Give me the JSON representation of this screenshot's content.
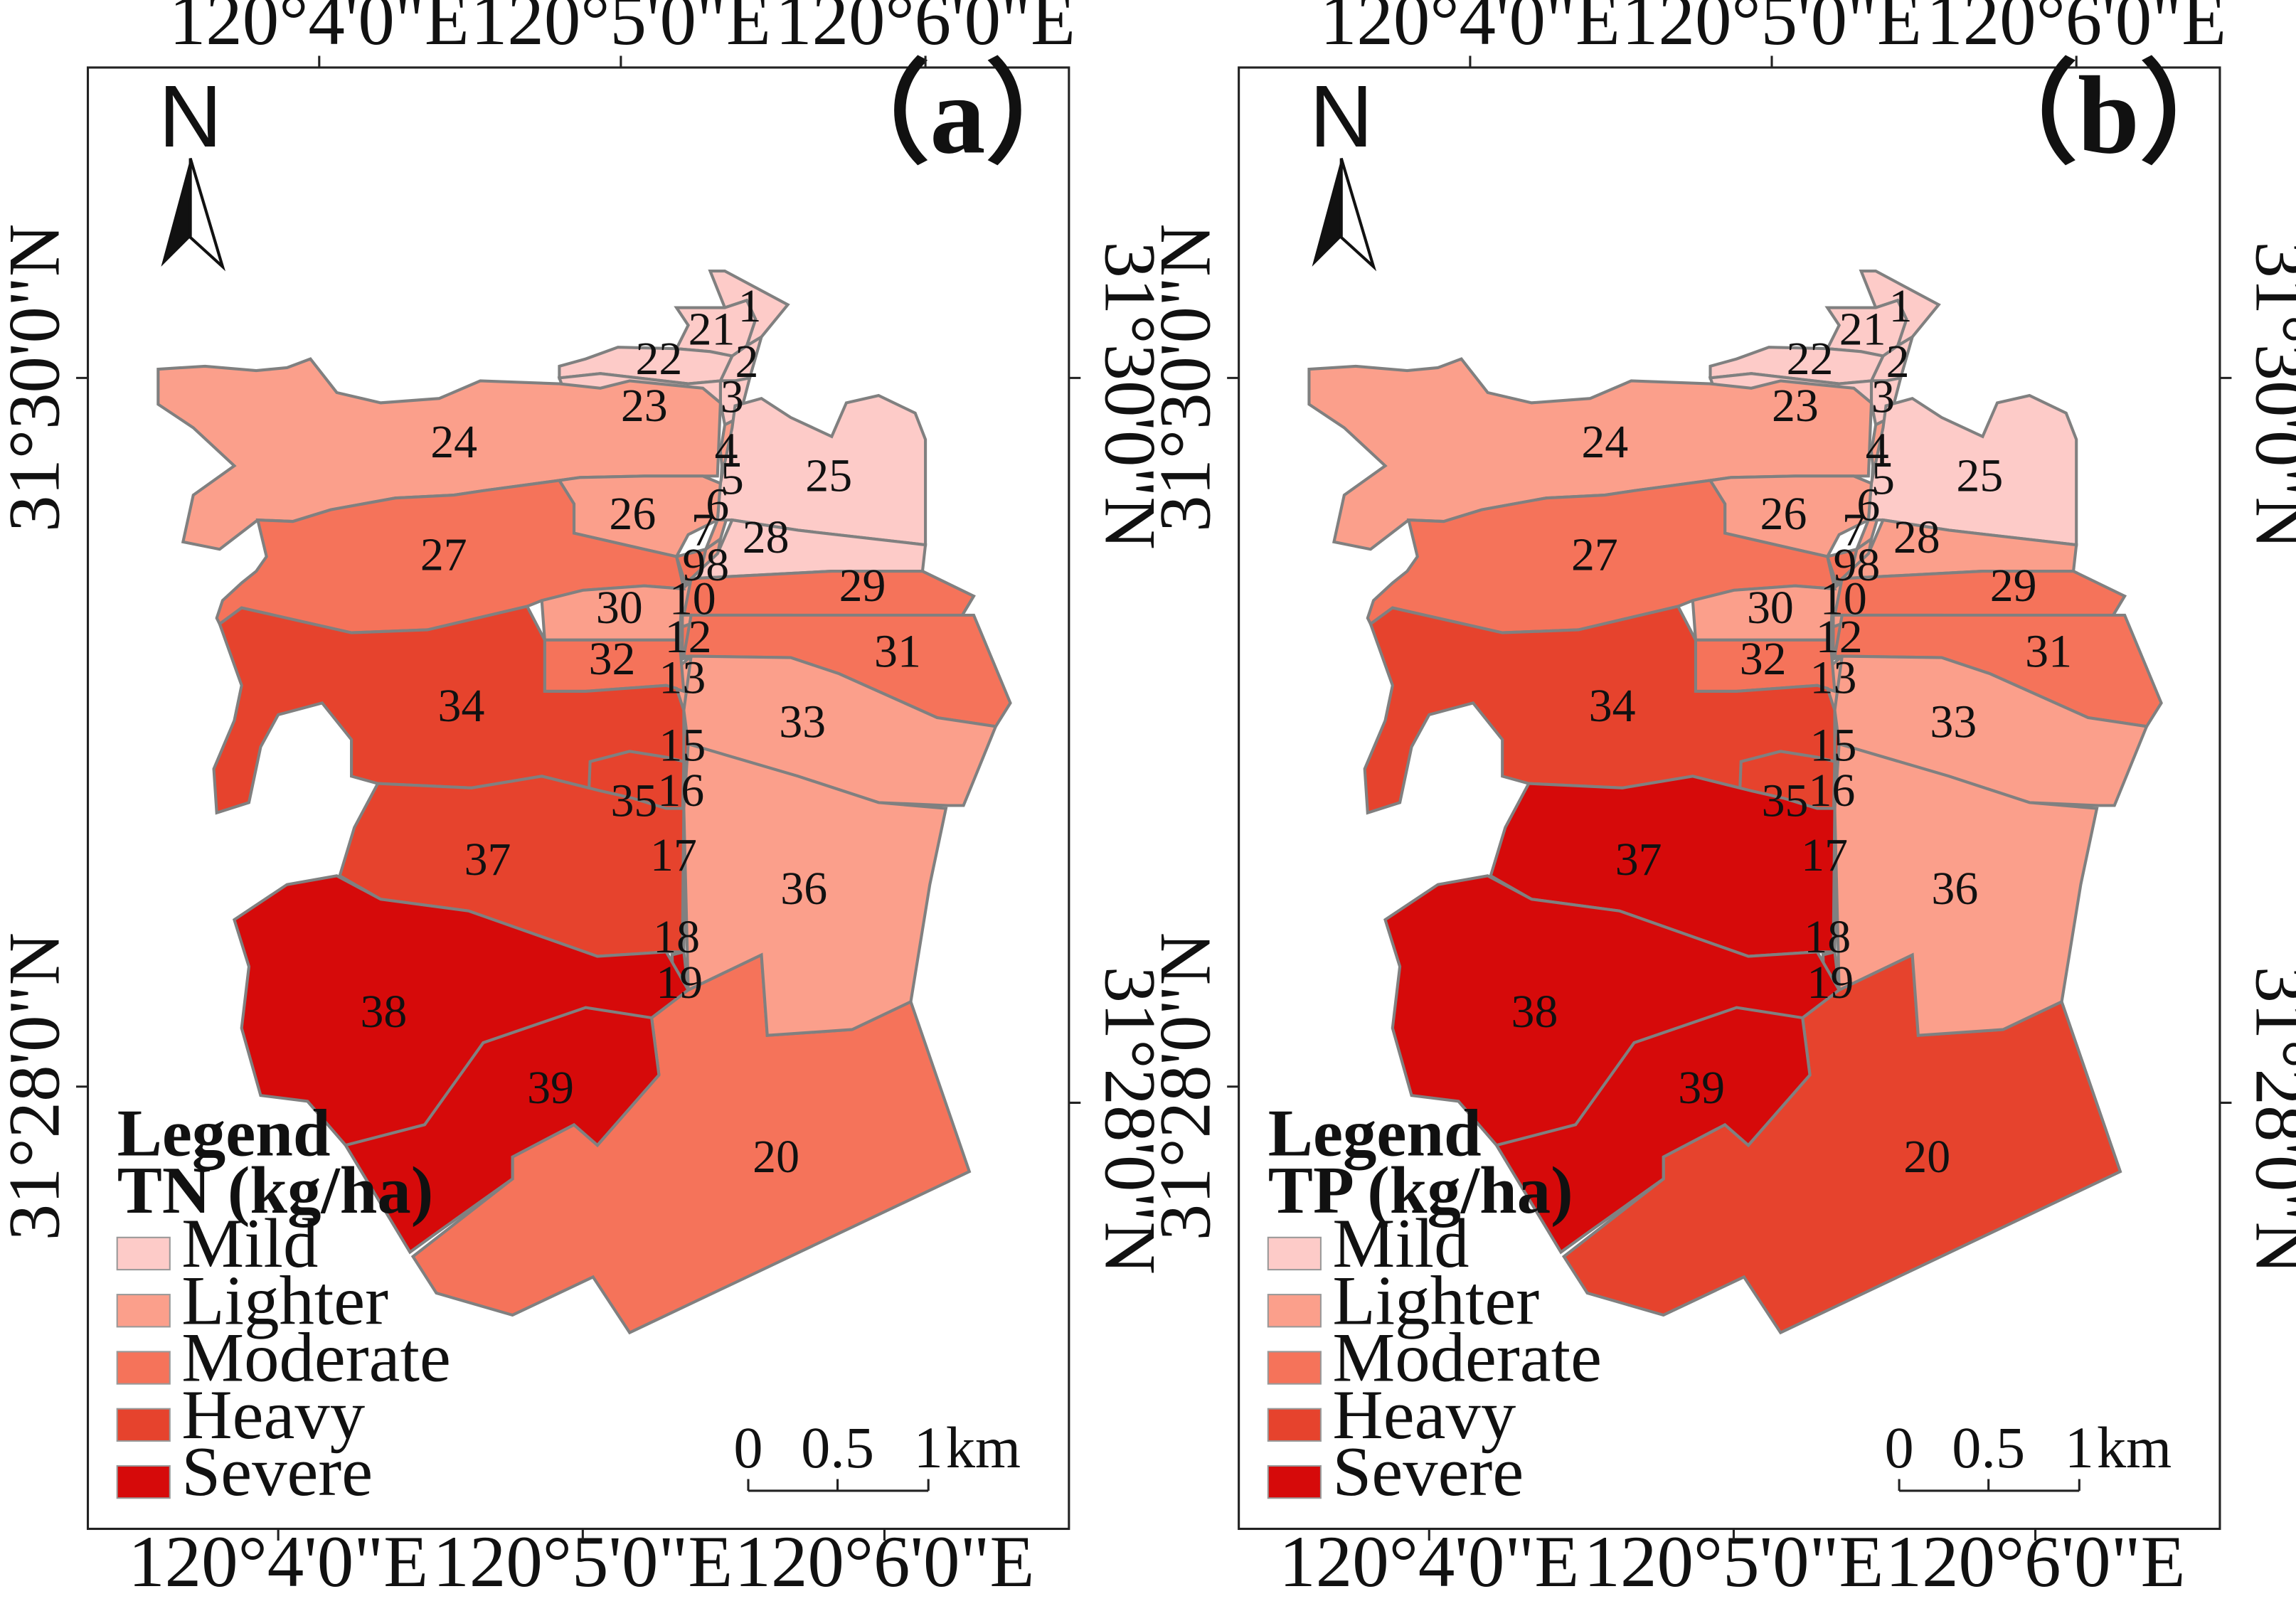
{
  "colors": {
    "Mild": "#fdcbc8",
    "Lighter": "#fb9f8b",
    "Moderate": "#f5735a",
    "Heavy": "#e6432d",
    "Severe": "#d60a0a"
  },
  "north_label": "N",
  "scale_bar": {
    "ticks": [
      "0",
      "0.5",
      "1"
    ],
    "unit": "km"
  },
  "coords": {
    "top": [
      "120°4'0\"E",
      "120°5'0\"E",
      "120°6'0\"E"
    ],
    "bottom": [
      "120°4'0\"E",
      "120°5'0\"E",
      "120°6'0\"E"
    ],
    "left": [
      "31°30'0\"N",
      "31°28'0\"N"
    ],
    "right": [
      "31°30'0\"N",
      "31°28'0\"N"
    ]
  },
  "legend": {
    "title": "Legend",
    "classes": [
      "Mild",
      "Lighter",
      "Moderate",
      "Heavy",
      "Severe"
    ]
  },
  "panels": [
    {
      "label": "（a）",
      "legend_subtitle": "TN (kg/ha)",
      "zones": {
        "1": "Mild",
        "2": "Mild",
        "3": "Mild",
        "4": "Lighter",
        "5": "Lighter",
        "6": "Lighter",
        "7": "Lighter",
        "8": "Lighter",
        "9": "Moderate",
        "10": "Lighter",
        "12": "Moderate",
        "13": "Lighter",
        "15": "Heavy",
        "16": "Heavy",
        "17": "Heavy",
        "18": "Heavy",
        "19": "Severe",
        "20": "Moderate",
        "21": "Mild",
        "22": "Mild",
        "23": "Mild",
        "24": "Lighter",
        "25": "Mild",
        "26": "Lighter",
        "27": "Moderate",
        "28": "Mild",
        "29": "Moderate",
        "30": "Lighter",
        "31": "Moderate",
        "32": "Moderate",
        "33": "Lighter",
        "34": "Heavy",
        "35": "Heavy",
        "36": "Lighter",
        "37": "Heavy",
        "38": "Severe",
        "39": "Severe"
      }
    },
    {
      "label": "（b）",
      "legend_subtitle": "TP (kg/ha)",
      "zones": {
        "1": "Mild",
        "2": "Mild",
        "3": "Mild",
        "4": "Lighter",
        "5": "Lighter",
        "6": "Lighter",
        "7": "Lighter",
        "8": "Lighter",
        "9": "Moderate",
        "10": "Lighter",
        "12": "Moderate",
        "13": "Lighter",
        "15": "Heavy",
        "16": "Heavy",
        "17": "Severe",
        "18": "Severe",
        "19": "Severe",
        "20": "Heavy",
        "21": "Mild",
        "22": "Mild",
        "23": "Mild",
        "24": "Lighter",
        "25": "Mild",
        "26": "Lighter",
        "27": "Moderate",
        "28": "Lighter",
        "29": "Moderate",
        "30": "Lighter",
        "31": "Moderate",
        "32": "Moderate",
        "33": "Lighter",
        "34": "Heavy",
        "35": "Heavy",
        "36": "Lighter",
        "37": "Severe",
        "38": "Severe",
        "39": "Severe"
      }
    }
  ]
}
